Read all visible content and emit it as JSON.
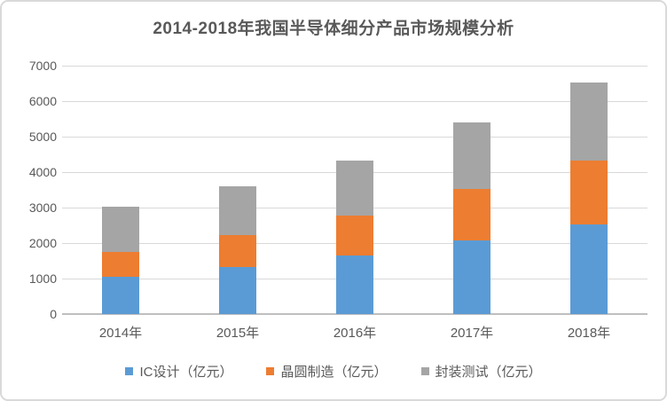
{
  "chart_data": {
    "type": "bar",
    "stacked": true,
    "title": "2014-2018年我国半导体细分产品市场规模分析",
    "categories": [
      "2014年",
      "2015年",
      "2016年",
      "2017年",
      "2018年"
    ],
    "series": [
      {
        "key": "ic-design",
        "name": "IC设计（亿元）",
        "color": "#5B9BD5",
        "values": [
          1047,
          1325,
          1644,
          2074,
          2519
        ]
      },
      {
        "key": "wafer-fabrication",
        "name": "晶圆制造（亿元）",
        "color": "#ED7D31",
        "values": [
          712,
          901,
          1127,
          1448,
          1818
        ]
      },
      {
        "key": "packaging-testing",
        "name": "封装测试（亿元）",
        "color": "#A5A5A5",
        "values": [
          1256,
          1384,
          1564,
          1890,
          2194
        ]
      }
    ],
    "xlabel": "",
    "ylabel": "",
    "ylim": [
      0,
      7000
    ],
    "ytick_step": 1000,
    "yticks": [
      "0",
      "1000",
      "2000",
      "3000",
      "4000",
      "5000",
      "6000",
      "7000"
    ],
    "grid": "horizontal",
    "legend_position": "bottom"
  },
  "style": {
    "title_color": "#595959",
    "axis_text_color": "#595959",
    "gridline_color": "#D9D9D9",
    "axis_line_color": "#BFBFBF",
    "frame_border_color": "#D9D9D9",
    "background": "#FFFFFF"
  }
}
